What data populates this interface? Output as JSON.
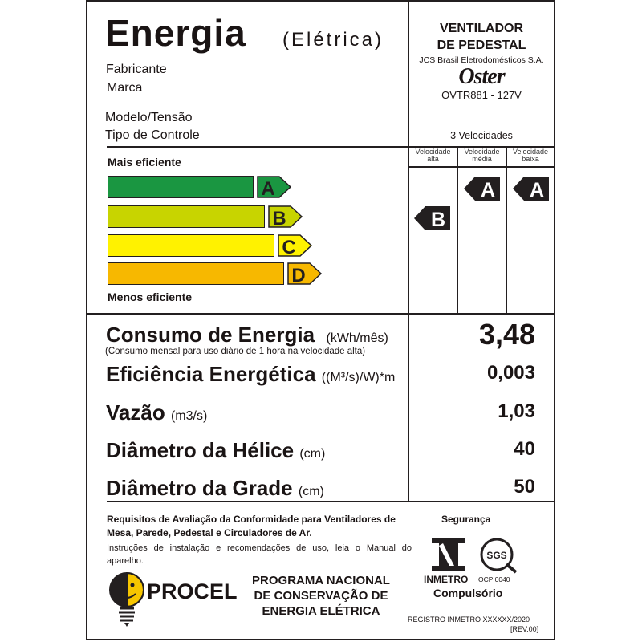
{
  "header": {
    "title": "Energia",
    "subtitle": "(Elétrica)"
  },
  "labels": {
    "manufacturer": "Fabricante",
    "brand": "Marca",
    "model": "Modelo/Tensão",
    "control": "Tipo de Controle"
  },
  "product": {
    "type_line1": "VENTILADOR",
    "type_line2": "DE PEDESTAL",
    "manufacturer": "JCS Brasil Eletrodomésticos S.A.",
    "brand_logo": "Oster",
    "model": "OVTR881 - 127V",
    "control": "3 Velocidades"
  },
  "scale": {
    "top_label": "Mais eficiente",
    "bottom_label": "Menos eficiente",
    "classes": [
      {
        "letter": "A",
        "color": "#1a9641"
      },
      {
        "letter": "B",
        "color": "#c8d400"
      },
      {
        "letter": "C",
        "color": "#fff200"
      },
      {
        "letter": "D",
        "color": "#f7b800"
      }
    ]
  },
  "speeds": [
    {
      "label1": "Velocidade",
      "label2": "alta",
      "class": "B"
    },
    {
      "label1": "Velocidade",
      "label2": "média",
      "class": "A"
    },
    {
      "label1": "Velocidade",
      "label2": "baixa",
      "class": "A"
    }
  ],
  "metrics": {
    "consumption": {
      "label": "Consumo de Energia",
      "unit": "(kWh/mês)",
      "note": "(Consumo mensal para uso diário de 1 hora na velocidade alta)",
      "value": "3,48"
    },
    "efficiency": {
      "label": "Eficiência Energética",
      "unit": "((M³/s)/W)*m",
      "value": "0,003"
    },
    "flow": {
      "label": "Vazão",
      "unit": "(m3/s)",
      "value": "1,03"
    },
    "propeller": {
      "label": "Diâmetro da Hélice",
      "unit": "(cm)",
      "value": "40"
    },
    "grid": {
      "label": "Diâmetro da Grade",
      "unit": "(cm)",
      "value": "50"
    }
  },
  "footer": {
    "requirements": "Requisitos de Avaliação da Conformidade para Ventiladores de Mesa, Parede, Pedestal e Circuladores de Ar.",
    "instructions": "Instruções de instalação e recomendações de uso, leia o Manual do aparelho.",
    "procel_logo": "PROCEL",
    "program_line1": "PROGRAMA NACIONAL",
    "program_line2": "DE CONSERVAÇÃO DE",
    "program_line3": "ENERGIA ELÉTRICA",
    "safety": "Segurança",
    "inmetro_logo": "INMETRO",
    "sgs_logo": "SGS",
    "ocp": "OCP 0040",
    "compulsory": "Compulsório",
    "registry": "REGISTRO INMETRO  XXXXXX/2020",
    "revision": "[REV.00]"
  }
}
